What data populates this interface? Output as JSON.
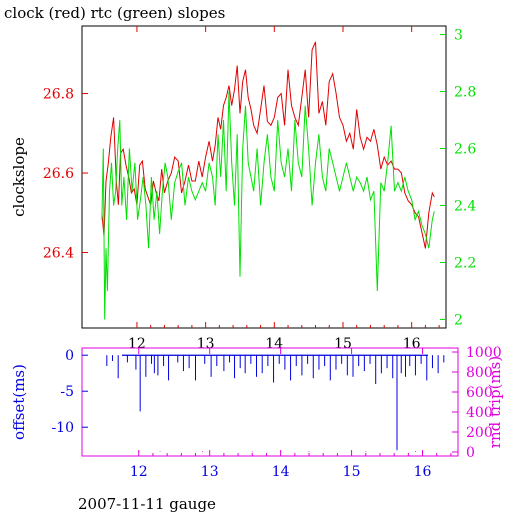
{
  "figure": {
    "title": "clock (red) rtc (green) slopes",
    "footer": "2007-11-11 gauge"
  },
  "chart_data": [
    {
      "type": "line",
      "panel": "top",
      "ylabel": "clockslope",
      "x_ticks": [
        "12",
        "13",
        "14",
        "15",
        "16"
      ],
      "xlim": [
        11.2,
        16.5
      ],
      "ylim_left": [
        26.21,
        26.97
      ],
      "ylim_right": [
        1.97,
        3.03
      ],
      "y_left_ticks": [
        "26.4",
        "26.6",
        "26.8"
      ],
      "y_right_ticks": [
        "2",
        "2.2",
        "2.4",
        "2.6",
        "2.8",
        "3"
      ],
      "colors": {
        "clock": "#e00000",
        "rtc": "#00e000",
        "frame": "#000000"
      },
      "grid": false,
      "series": [
        {
          "axis": "left",
          "color": "#e00000",
          "x": [
            11.49,
            11.52,
            11.55,
            11.58,
            11.62,
            11.66,
            11.7,
            11.73,
            11.76,
            11.8,
            11.84,
            11.88,
            11.92,
            11.96,
            12.0,
            12.04,
            12.08,
            12.12,
            12.16,
            12.2,
            12.24,
            12.28,
            12.32,
            12.36,
            12.4,
            12.45,
            12.5,
            12.55,
            12.6,
            12.65,
            12.7,
            12.75,
            12.8,
            12.85,
            12.9,
            12.95,
            13.0,
            13.05,
            13.1,
            13.14,
            13.18,
            13.22,
            13.26,
            13.3,
            13.34,
            13.38,
            13.42,
            13.46,
            13.5,
            13.54,
            13.58,
            13.62,
            13.66,
            13.7,
            13.75,
            13.8,
            13.85,
            13.9,
            13.95,
            14.0,
            14.05,
            14.1,
            14.15,
            14.2,
            14.25,
            14.3,
            14.35,
            14.4,
            14.45,
            14.5,
            14.55,
            14.6,
            14.65,
            14.7,
            14.75,
            14.8,
            14.85,
            14.9,
            14.95,
            15.0,
            15.05,
            15.1,
            15.15,
            15.2,
            15.25,
            15.3,
            15.35,
            15.4,
            15.45,
            15.5,
            15.55,
            15.6,
            15.65,
            15.7,
            15.75,
            15.8,
            15.85,
            15.9,
            15.95,
            16.0,
            16.05,
            16.1,
            16.15,
            16.2,
            16.25,
            16.3,
            16.33
          ],
          "y": [
            26.5,
            26.44,
            26.58,
            26.62,
            26.69,
            26.74,
            26.58,
            26.52,
            26.65,
            26.66,
            26.62,
            26.59,
            26.55,
            26.56,
            26.52,
            26.62,
            26.63,
            26.56,
            26.54,
            26.52,
            26.58,
            26.55,
            26.53,
            26.61,
            26.55,
            26.58,
            26.6,
            26.64,
            26.63,
            26.55,
            26.58,
            26.62,
            26.58,
            26.58,
            26.63,
            26.59,
            26.64,
            26.68,
            26.63,
            26.67,
            26.74,
            26.71,
            26.77,
            26.79,
            26.82,
            26.77,
            26.81,
            26.87,
            26.75,
            26.83,
            26.86,
            26.79,
            26.76,
            26.72,
            26.7,
            26.76,
            26.82,
            26.73,
            26.72,
            26.74,
            26.79,
            26.8,
            26.72,
            26.86,
            26.77,
            26.74,
            26.72,
            26.79,
            26.86,
            26.74,
            26.91,
            26.93,
            26.75,
            26.78,
            26.72,
            26.83,
            26.85,
            26.8,
            26.74,
            26.72,
            26.68,
            26.7,
            26.66,
            26.76,
            26.69,
            26.66,
            26.69,
            26.68,
            26.71,
            26.67,
            26.61,
            26.64,
            26.62,
            26.63,
            26.61,
            26.61,
            26.6,
            26.55,
            26.53,
            26.52,
            26.5,
            26.49,
            26.45,
            26.41,
            26.5,
            26.55,
            26.54
          ]
        },
        {
          "axis": "right",
          "color": "#00e000",
          "x": [
            11.49,
            11.51,
            11.53,
            11.55,
            11.57,
            11.6,
            11.63,
            11.66,
            11.69,
            11.72,
            11.75,
            11.78,
            11.81,
            11.85,
            11.89,
            11.93,
            11.97,
            12.01,
            12.05,
            12.09,
            12.13,
            12.17,
            12.21,
            12.25,
            12.29,
            12.33,
            12.37,
            12.41,
            12.45,
            12.5,
            12.55,
            12.6,
            12.65,
            12.7,
            12.75,
            12.8,
            12.85,
            12.9,
            12.95,
            13.0,
            13.05,
            13.1,
            13.14,
            13.18,
            13.22,
            13.26,
            13.3,
            13.34,
            13.38,
            13.42,
            13.46,
            13.5,
            13.54,
            13.58,
            13.62,
            13.66,
            13.7,
            13.75,
            13.8,
            13.85,
            13.9,
            13.95,
            14.0,
            14.05,
            14.1,
            14.15,
            14.2,
            14.25,
            14.3,
            14.35,
            14.4,
            14.45,
            14.5,
            14.55,
            14.6,
            14.65,
            14.7,
            14.75,
            14.8,
            14.85,
            14.9,
            14.95,
            15.0,
            15.05,
            15.1,
            15.15,
            15.2,
            15.25,
            15.3,
            15.35,
            15.4,
            15.45,
            15.5,
            15.55,
            15.6,
            15.65,
            15.7,
            15.75,
            15.8,
            15.85,
            15.9,
            15.95,
            16.0,
            16.05,
            16.1,
            16.15,
            16.2,
            16.25,
            16.3,
            16.33
          ],
          "y": [
            2.35,
            2.6,
            2.0,
            2.25,
            2.1,
            2.45,
            2.55,
            2.4,
            2.45,
            2.6,
            2.7,
            2.4,
            2.5,
            2.35,
            2.6,
            2.45,
            2.55,
            2.35,
            2.42,
            2.5,
            2.4,
            2.25,
            2.5,
            2.35,
            2.45,
            2.3,
            2.45,
            2.55,
            2.5,
            2.35,
            2.48,
            2.52,
            2.55,
            2.4,
            2.5,
            2.45,
            2.42,
            2.45,
            2.48,
            2.45,
            2.55,
            2.5,
            2.4,
            2.65,
            2.5,
            2.7,
            2.45,
            2.8,
            2.55,
            2.4,
            2.65,
            2.15,
            2.6,
            2.75,
            2.55,
            2.5,
            2.45,
            2.6,
            2.4,
            2.55,
            2.65,
            2.5,
            2.45,
            2.7,
            2.55,
            2.5,
            2.6,
            2.45,
            2.7,
            2.55,
            2.5,
            2.75,
            2.6,
            2.4,
            2.55,
            2.65,
            2.5,
            2.45,
            2.6,
            2.55,
            2.5,
            2.45,
            2.5,
            2.55,
            2.5,
            2.45,
            2.5,
            2.48,
            2.45,
            2.5,
            2.42,
            2.45,
            2.1,
            2.48,
            2.45,
            2.55,
            2.68,
            2.45,
            2.48,
            2.45,
            2.5,
            2.45,
            2.42,
            2.35,
            2.38,
            2.33,
            2.3,
            2.25,
            2.35,
            2.38
          ]
        }
      ]
    },
    {
      "type": "line",
      "panel": "bottom",
      "ylabel": "offset(ms)",
      "ylabel_right": "rnd trip(ms)",
      "x_ticks": [
        "12",
        "13",
        "14",
        "15",
        "16"
      ],
      "xlim": [
        11.2,
        16.5
      ],
      "ylim_left": [
        -14,
        1.0
      ],
      "ylim_right": [
        -40,
        1040
      ],
      "y_left_ticks": [
        "-10",
        "-5",
        "0"
      ],
      "y_right_ticks": [
        "0",
        "200",
        "400",
        "600",
        "800",
        "1000"
      ],
      "colors": {
        "offset": "#0000e0",
        "rnd_trip": "#e000e0"
      },
      "grid": false,
      "series": [
        {
          "axis": "left",
          "color": "#0000e0",
          "x": [
            11.55,
            11.63,
            11.71,
            11.84,
            11.96,
            12.02,
            12.1,
            12.18,
            12.22,
            12.27,
            12.35,
            12.42,
            12.55,
            12.63,
            12.71,
            12.8,
            12.93,
            13.02,
            13.1,
            13.2,
            13.28,
            13.35,
            13.43,
            13.5,
            13.58,
            13.66,
            13.74,
            13.82,
            13.9,
            13.98,
            14.06,
            14.14,
            14.22,
            14.3,
            14.38,
            14.46,
            14.54,
            14.62,
            14.7,
            14.78,
            14.86,
            14.94,
            15.02,
            15.1,
            15.18,
            15.26,
            15.34,
            15.42,
            15.5,
            15.58,
            15.64,
            15.7,
            15.76,
            15.82,
            15.9,
            15.98,
            16.06,
            16.14,
            16.22,
            16.3
          ],
          "y": [
            -1.5,
            -0.8,
            -3.2,
            -1.0,
            -2.0,
            -7.8,
            -3.0,
            -1.2,
            -2.5,
            -2.8,
            -1.5,
            -3.5,
            -1.0,
            -2.2,
            -1.8,
            -3.5,
            -1.2,
            -3.0,
            -1.5,
            -2.2,
            -1.0,
            -3.2,
            -1.8,
            -2.5,
            -1.2,
            -3.0,
            -2.5,
            -1.5,
            -3.8,
            -1.2,
            -2.0,
            -3.5,
            -1.5,
            -2.8,
            -1.2,
            -3.2,
            -2.0,
            -1.5,
            -3.5,
            -2.0,
            -1.2,
            -2.8,
            -3.0,
            -1.5,
            -2.2,
            -1.2,
            -4.0,
            -2.5,
            -1.8,
            -3.2,
            -13.2,
            -2.5,
            -3.0,
            -1.5,
            -2.8,
            -1.2,
            -3.5,
            -1.8,
            -2.5,
            -1.0
          ]
        },
        {
          "axis": "right",
          "color": "#e000e0",
          "x": [
            12.0,
            12.3,
            12.9,
            13.6,
            14.4,
            15.2,
            15.9
          ],
          "y": [
            8,
            6,
            8,
            5,
            7,
            6,
            8
          ]
        }
      ]
    }
  ]
}
